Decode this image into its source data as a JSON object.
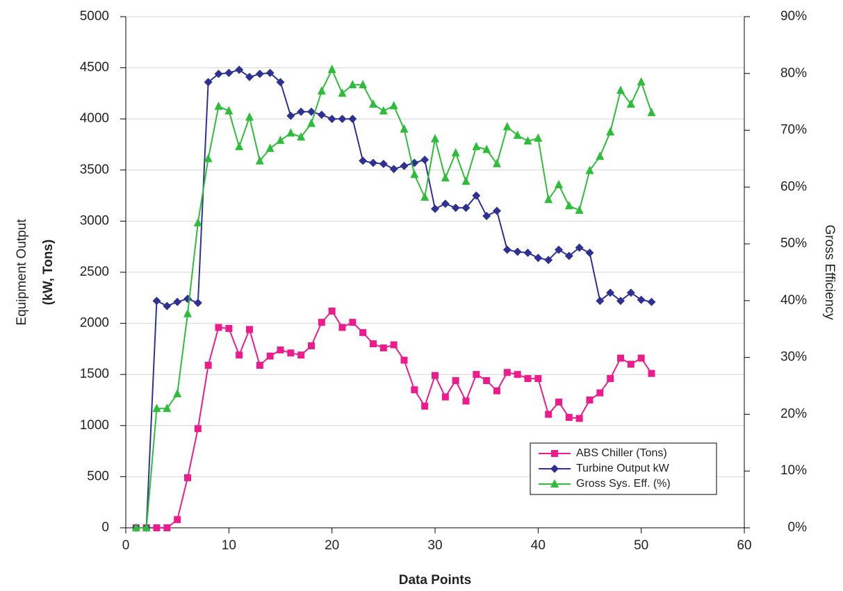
{
  "chart_data": {
    "type": "line",
    "xlabel": "Data Points",
    "ylabel": [
      "Equipment Output",
      "(kW, Tons)"
    ],
    "y2label": "Gross Efficiency",
    "x": [
      1,
      2,
      3,
      4,
      5,
      6,
      7,
      8,
      9,
      10,
      11,
      12,
      13,
      14,
      15,
      16,
      17,
      18,
      19,
      20,
      21,
      22,
      23,
      24,
      25,
      26,
      27,
      28,
      29,
      30,
      31,
      32,
      33,
      34,
      35,
      36,
      37,
      38,
      39,
      40,
      41,
      42,
      43,
      44,
      45,
      46,
      47,
      48,
      49,
      50,
      51
    ],
    "xlim": [
      0,
      60
    ],
    "xticks": [
      0,
      10,
      20,
      30,
      40,
      50,
      60
    ],
    "ylim": [
      0,
      5000
    ],
    "yticks": [
      0,
      500,
      1000,
      1500,
      2000,
      2500,
      3000,
      3500,
      4000,
      4500,
      5000
    ],
    "y2lim": [
      0,
      90
    ],
    "y2ticks": [
      {
        "value": 0,
        "label": "0%"
      },
      {
        "value": 10,
        "label": "10%"
      },
      {
        "value": 20,
        "label": "20%"
      },
      {
        "value": 30,
        "label": "30%"
      },
      {
        "value": 40,
        "label": "40%"
      },
      {
        "value": 50,
        "label": "50%"
      },
      {
        "value": 60,
        "label": "60%"
      },
      {
        "value": 70,
        "label": "70%"
      },
      {
        "value": 80,
        "label": "80%"
      },
      {
        "value": 90,
        "label": "90%"
      }
    ],
    "grid": true,
    "legend": "lower right",
    "series": [
      {
        "name": "ABS Chiller (Tons)",
        "color": "#ec1c8c",
        "marker": "square",
        "values": [
          0,
          0,
          0,
          0,
          80,
          490,
          970,
          1590,
          1960,
          1950,
          1690,
          1940,
          1590,
          1680,
          1740,
          1710,
          1690,
          1780,
          2010,
          2120,
          1960,
          2010,
          1910,
          1800,
          1760,
          1790,
          1640,
          1350,
          1190,
          1490,
          1280,
          1440,
          1240,
          1500,
          1440,
          1340,
          1520,
          1500,
          1460,
          1460,
          1110,
          1230,
          1080,
          1070,
          1250,
          1320,
          1460,
          1660,
          1600,
          1660,
          1510
        ]
      },
      {
        "name": "Turbine Output kW",
        "color": "#2e3192",
        "marker": "diamond",
        "values": [
          0,
          0,
          2220,
          2170,
          2210,
          2240,
          2200,
          4360,
          4440,
          4450,
          4480,
          4410,
          4440,
          4450,
          4360,
          4030,
          4070,
          4070,
          4040,
          4000,
          4000,
          4000,
          3590,
          3570,
          3560,
          3510,
          3540,
          3570,
          3600,
          3120,
          3170,
          3130,
          3130,
          3250,
          3050,
          3100,
          2720,
          2700,
          2690,
          2640,
          2620,
          2720,
          2660,
          2740,
          2690,
          2220,
          2300,
          2220,
          2300,
          2230,
          2210
        ]
      },
      {
        "name": "Gross Sys. Eff. (%)",
        "color": "#2ebd3a",
        "marker": "triangle",
        "axis": "y2",
        "values": [
          0,
          0,
          21,
          21,
          23.6,
          37.7,
          53.7,
          65,
          74.2,
          73.4,
          67.1,
          72.3,
          64.6,
          66.8,
          68.2,
          69.5,
          68.8,
          71.2,
          76.9,
          80.7,
          76.5,
          78,
          78,
          74.6,
          73.4,
          74.3,
          70.2,
          62.2,
          58.2,
          68.5,
          61.6,
          66,
          61,
          67.1,
          66.6,
          64.1,
          70.6,
          69.1,
          68.1,
          68.6,
          57.8,
          60.4,
          56.7,
          55.9,
          62.9,
          65.4,
          69.7,
          77,
          74.6,
          78.5,
          73.1
        ]
      }
    ]
  }
}
